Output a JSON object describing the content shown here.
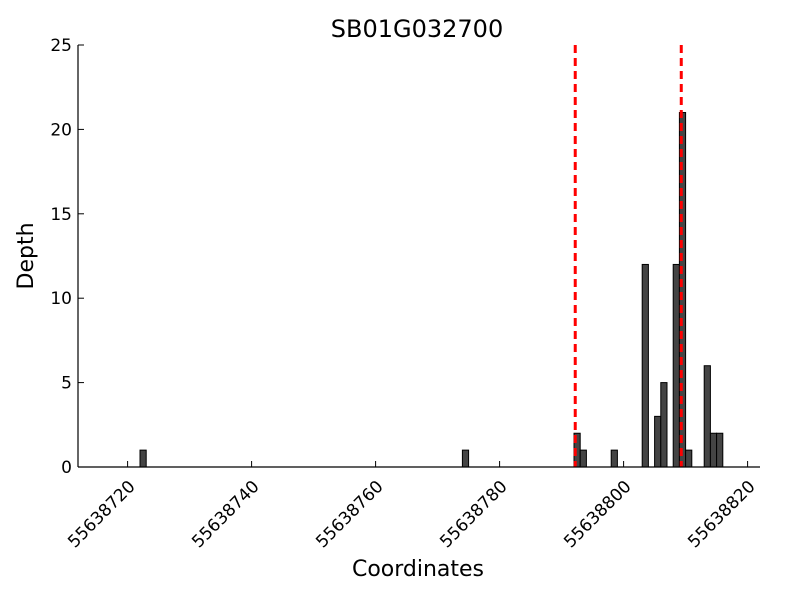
{
  "chart_data": {
    "type": "bar",
    "title": "SB01G032700",
    "xlabel": "Coordinates",
    "ylabel": "Depth",
    "xlim": [
      55638712,
      55638822
    ],
    "ylim": [
      0,
      25
    ],
    "x_ticks": [
      55638720,
      55638740,
      55638760,
      55638780,
      55638800,
      55638820
    ],
    "y_ticks": [
      0,
      5,
      10,
      15,
      20,
      25
    ],
    "bar_width": 1,
    "series": [
      {
        "color": "#444444",
        "points": [
          {
            "x": 55638722,
            "y": 1
          },
          {
            "x": 55638774,
            "y": 1
          },
          {
            "x": 55638792,
            "y": 2
          },
          {
            "x": 55638793,
            "y": 1
          },
          {
            "x": 55638798,
            "y": 1
          },
          {
            "x": 55638803,
            "y": 12
          },
          {
            "x": 55638805,
            "y": 3
          },
          {
            "x": 55638806,
            "y": 5
          },
          {
            "x": 55638808,
            "y": 12
          },
          {
            "x": 55638809,
            "y": 21
          },
          {
            "x": 55638810,
            "y": 1
          },
          {
            "x": 55638813,
            "y": 6
          },
          {
            "x": 55638814,
            "y": 2
          },
          {
            "x": 55638815,
            "y": 2
          }
        ]
      }
    ],
    "vlines": [
      {
        "x": 55638792.2,
        "color": "#ff0000",
        "style": "dashed"
      },
      {
        "x": 55638809.3,
        "color": "#ff0000",
        "style": "dashed"
      }
    ],
    "grid": false
  }
}
